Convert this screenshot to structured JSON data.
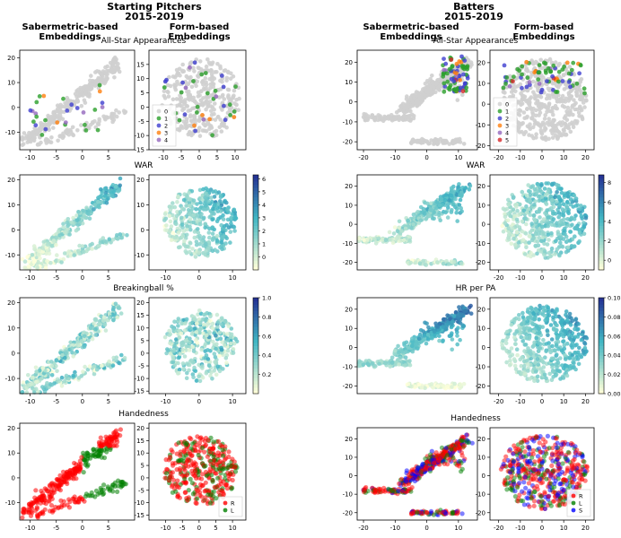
{
  "titles": {
    "pitchers": "Starting Pitchers\n2015-2019",
    "batters": "Batters\n2015-2019",
    "saber_col": "Sabermetric-based\nEmbeddings",
    "form_col": "Form-based\nEmbeddings"
  },
  "colors": {
    "gray": "#cfcfcf",
    "allstar": [
      "#cfcfcf",
      "#2ca02c",
      "#3f3fd0",
      "#ff7f0e",
      "#9467bd",
      "#d62728"
    ],
    "hand_R": "#ff0000",
    "hand_L": "#008000",
    "hand_S": "#0000ff",
    "ygb_low": "#ffffd9",
    "ygb_mid": "#41b6c4",
    "ygb_high": "#253494"
  },
  "chart_data": [
    {
      "type": "scatter",
      "group": "pitchers",
      "row": "all_star",
      "title": "All-Star Appearances",
      "panels": [
        {
          "name": "sabermetric",
          "xlim": [
            -12,
            10
          ],
          "ylim": [
            -17,
            23
          ],
          "xticks": [
            -10,
            -5,
            0,
            5
          ],
          "yticks": [
            -10,
            0,
            10,
            20
          ]
        },
        {
          "name": "form",
          "xlim": [
            -14,
            13
          ],
          "ylim": [
            -15,
            20
          ],
          "xticks": [
            -10,
            -5,
            0,
            5,
            10
          ],
          "yticks": [
            -15,
            -10,
            -5,
            0,
            5,
            10,
            15
          ]
        }
      ],
      "legend": {
        "entries": [
          "0",
          "1",
          "2",
          "3",
          "4"
        ],
        "placement": "lower-left"
      }
    },
    {
      "type": "scatter",
      "group": "pitchers",
      "row": "war",
      "title": "WAR",
      "panels": [
        {
          "name": "sabermetric",
          "xlim": [
            -12,
            10
          ],
          "ylim": [
            -16,
            22
          ],
          "xticks": [
            -10,
            -5,
            0,
            5
          ],
          "yticks": [
            -10,
            0,
            10,
            20
          ]
        },
        {
          "name": "form",
          "xlim": [
            -15,
            14
          ],
          "ylim": [
            -16,
            22
          ],
          "xticks": [
            -10,
            0,
            10
          ],
          "yticks": [
            -10,
            0,
            10,
            20
          ]
        }
      ],
      "colorbar": {
        "range": [
          -1,
          6.3
        ],
        "ticks": [
          "0",
          "1",
          "2",
          "3",
          "4",
          "5",
          "6"
        ]
      }
    },
    {
      "type": "scatter",
      "group": "pitchers",
      "row": "breakingball",
      "title": "Breakingball %",
      "panels": [
        {
          "name": "sabermetric",
          "xlim": [
            -12,
            10
          ],
          "ylim": [
            -16,
            22
          ],
          "xticks": [
            -10,
            -5,
            0,
            5
          ],
          "yticks": [
            -10,
            0,
            10,
            20
          ]
        },
        {
          "name": "form",
          "xlim": [
            -15,
            14
          ],
          "ylim": [
            -16,
            22
          ],
          "xticks": [
            -10,
            0,
            10
          ],
          "yticks": [
            -15,
            -10,
            -5,
            0,
            5,
            10,
            15,
            20
          ]
        }
      ],
      "colorbar": {
        "range": [
          0,
          1
        ],
        "ticks": [
          "0.2",
          "0.4",
          "0.6",
          "0.8",
          "1.0"
        ]
      }
    },
    {
      "type": "scatter",
      "group": "pitchers",
      "row": "handedness",
      "title": "Handedness",
      "panels": [
        {
          "name": "sabermetric",
          "xlim": [
            -12,
            10
          ],
          "ylim": [
            -17,
            22
          ],
          "xticks": [
            -10,
            -5,
            0,
            5
          ],
          "yticks": [
            -10,
            0,
            10,
            20
          ]
        },
        {
          "name": "form",
          "xlim": [
            -15,
            14
          ],
          "ylim": [
            -17,
            22
          ],
          "xticks": [
            -10,
            -5,
            0,
            5,
            10
          ],
          "yticks": [
            -15,
            -10,
            -5,
            0,
            5,
            10,
            15,
            20
          ]
        }
      ],
      "legend": {
        "entries": [
          "R",
          "L"
        ],
        "placement": "lower-right"
      }
    },
    {
      "type": "scatter",
      "group": "batters",
      "row": "all_star",
      "title": "All-Star Appearances",
      "panels": [
        {
          "name": "sabermetric",
          "xlim": [
            -22,
            16
          ],
          "ylim": [
            -24,
            26
          ],
          "xticks": [
            -20,
            -10,
            0,
            10
          ],
          "yticks": [
            -20,
            -10,
            0,
            10,
            20
          ]
        },
        {
          "name": "form",
          "xlim": [
            -24,
            24
          ],
          "ylim": [
            -22,
            26
          ],
          "xticks": [
            -20,
            -10,
            0,
            10,
            20
          ],
          "yticks": [
            -20,
            -10,
            0,
            10,
            20
          ]
        }
      ],
      "legend": {
        "entries": [
          "0",
          "1",
          "2",
          "3",
          "4",
          "5"
        ],
        "placement": "lower-left"
      }
    },
    {
      "type": "scatter",
      "group": "batters",
      "row": "war",
      "title": "WAR",
      "panels": [
        {
          "name": "sabermetric",
          "xlim": [
            -20,
            16
          ],
          "ylim": [
            -24,
            26
          ],
          "xticks": [],
          "yticks": [
            -20,
            -10,
            0,
            10,
            20
          ]
        },
        {
          "name": "form",
          "xlim": [
            -24,
            24
          ],
          "ylim": [
            -24,
            26
          ],
          "xticks": [
            -20,
            -10,
            0,
            10,
            20
          ],
          "yticks": [
            -20,
            -10,
            0,
            10,
            20
          ]
        }
      ],
      "colorbar": {
        "range": [
          -1,
          8.8
        ],
        "ticks": [
          "0",
          "2",
          "4",
          "6",
          "8"
        ]
      }
    },
    {
      "type": "scatter",
      "group": "batters",
      "row": "hr_per_pa",
      "title": "HR per PA",
      "panels": [
        {
          "name": "sabermetric",
          "xlim": [
            -20,
            16
          ],
          "ylim": [
            -24,
            26
          ],
          "xticks": [],
          "yticks": [
            -20,
            -10,
            0,
            10,
            20
          ]
        },
        {
          "name": "form",
          "xlim": [
            -24,
            24
          ],
          "ylim": [
            -24,
            26
          ],
          "xticks": [
            -20,
            -10,
            0,
            10,
            20
          ],
          "yticks": [
            -20,
            -10,
            0,
            10,
            20
          ]
        }
      ],
      "colorbar": {
        "range": [
          0,
          0.1
        ],
        "ticks": [
          "0.00",
          "0.02",
          "0.04",
          "0.06",
          "0.08",
          "0.10"
        ]
      }
    },
    {
      "type": "scatter",
      "group": "batters",
      "row": "handedness",
      "title": "Handedness",
      "panels": [
        {
          "name": "sabermetric",
          "xlim": [
            -22,
            16
          ],
          "ylim": [
            -24,
            26
          ],
          "xticks": [
            -20,
            -10,
            0,
            10
          ],
          "yticks": [
            -20,
            -10,
            0,
            10,
            20
          ]
        },
        {
          "name": "form",
          "xlim": [
            -24,
            24
          ],
          "ylim": [
            -24,
            26
          ],
          "xticks": [
            -20,
            -10,
            0,
            10,
            20
          ],
          "yticks": [
            -20,
            -10,
            0,
            10,
            20
          ]
        }
      ],
      "legend": {
        "entries": [
          "R",
          "L",
          "S"
        ],
        "placement": "lower-right"
      }
    }
  ]
}
